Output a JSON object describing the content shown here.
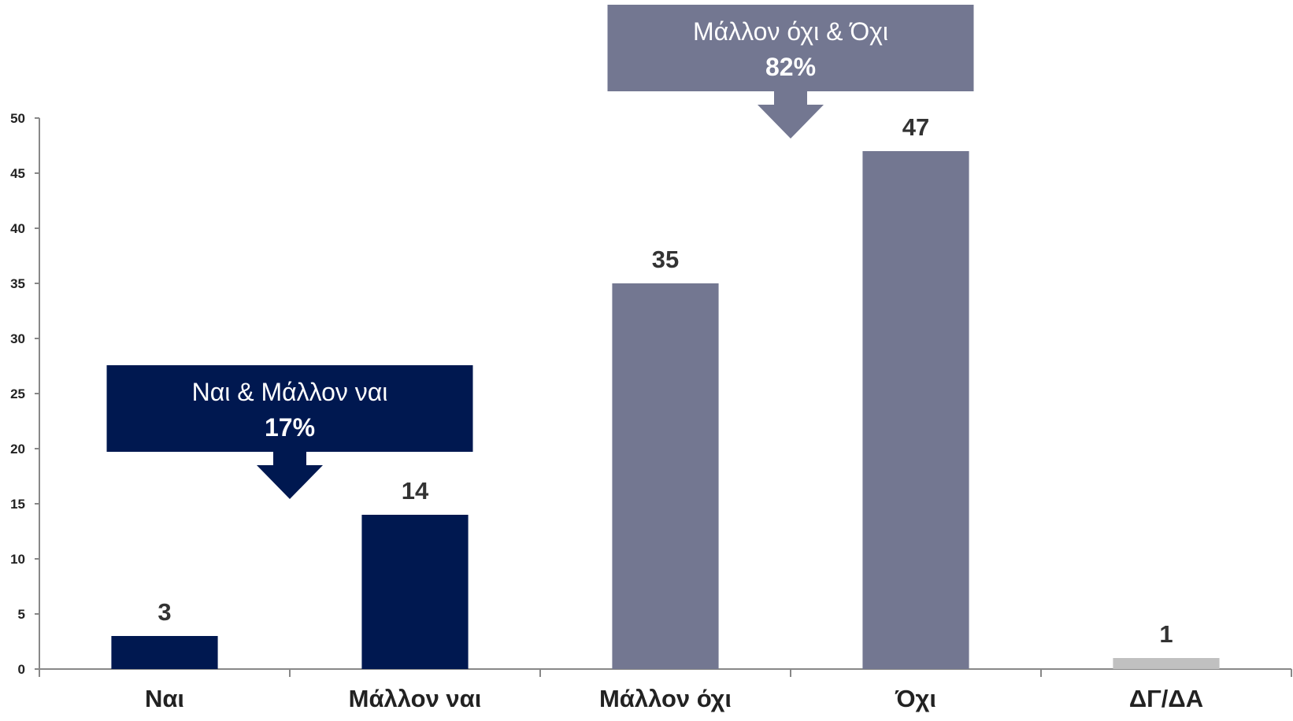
{
  "chart_data": {
    "type": "bar",
    "categories": [
      "Ναι",
      "Μάλλον ναι",
      "Μάλλον όχι",
      "Όχι",
      "ΔΓ/ΔΑ"
    ],
    "values": [
      3,
      14,
      35,
      47,
      1
    ],
    "ylim": [
      0,
      50
    ],
    "yticks": [
      "0",
      "5",
      "10",
      "15",
      "20",
      "25",
      "30",
      "35",
      "40",
      "45",
      "50"
    ],
    "grid": false,
    "colors": [
      "#001850",
      "#001850",
      "#737791",
      "#737791",
      "#c0c0c0"
    ],
    "annotations": [
      {
        "label": "Ναι & Μάλλον ναι",
        "value": "17%",
        "color": "#001850",
        "groups": [
          0,
          1
        ]
      },
      {
        "label": "Μάλλον όχι & Όχι",
        "value": "82%",
        "color": "#737791",
        "groups": [
          2,
          3
        ]
      }
    ]
  }
}
